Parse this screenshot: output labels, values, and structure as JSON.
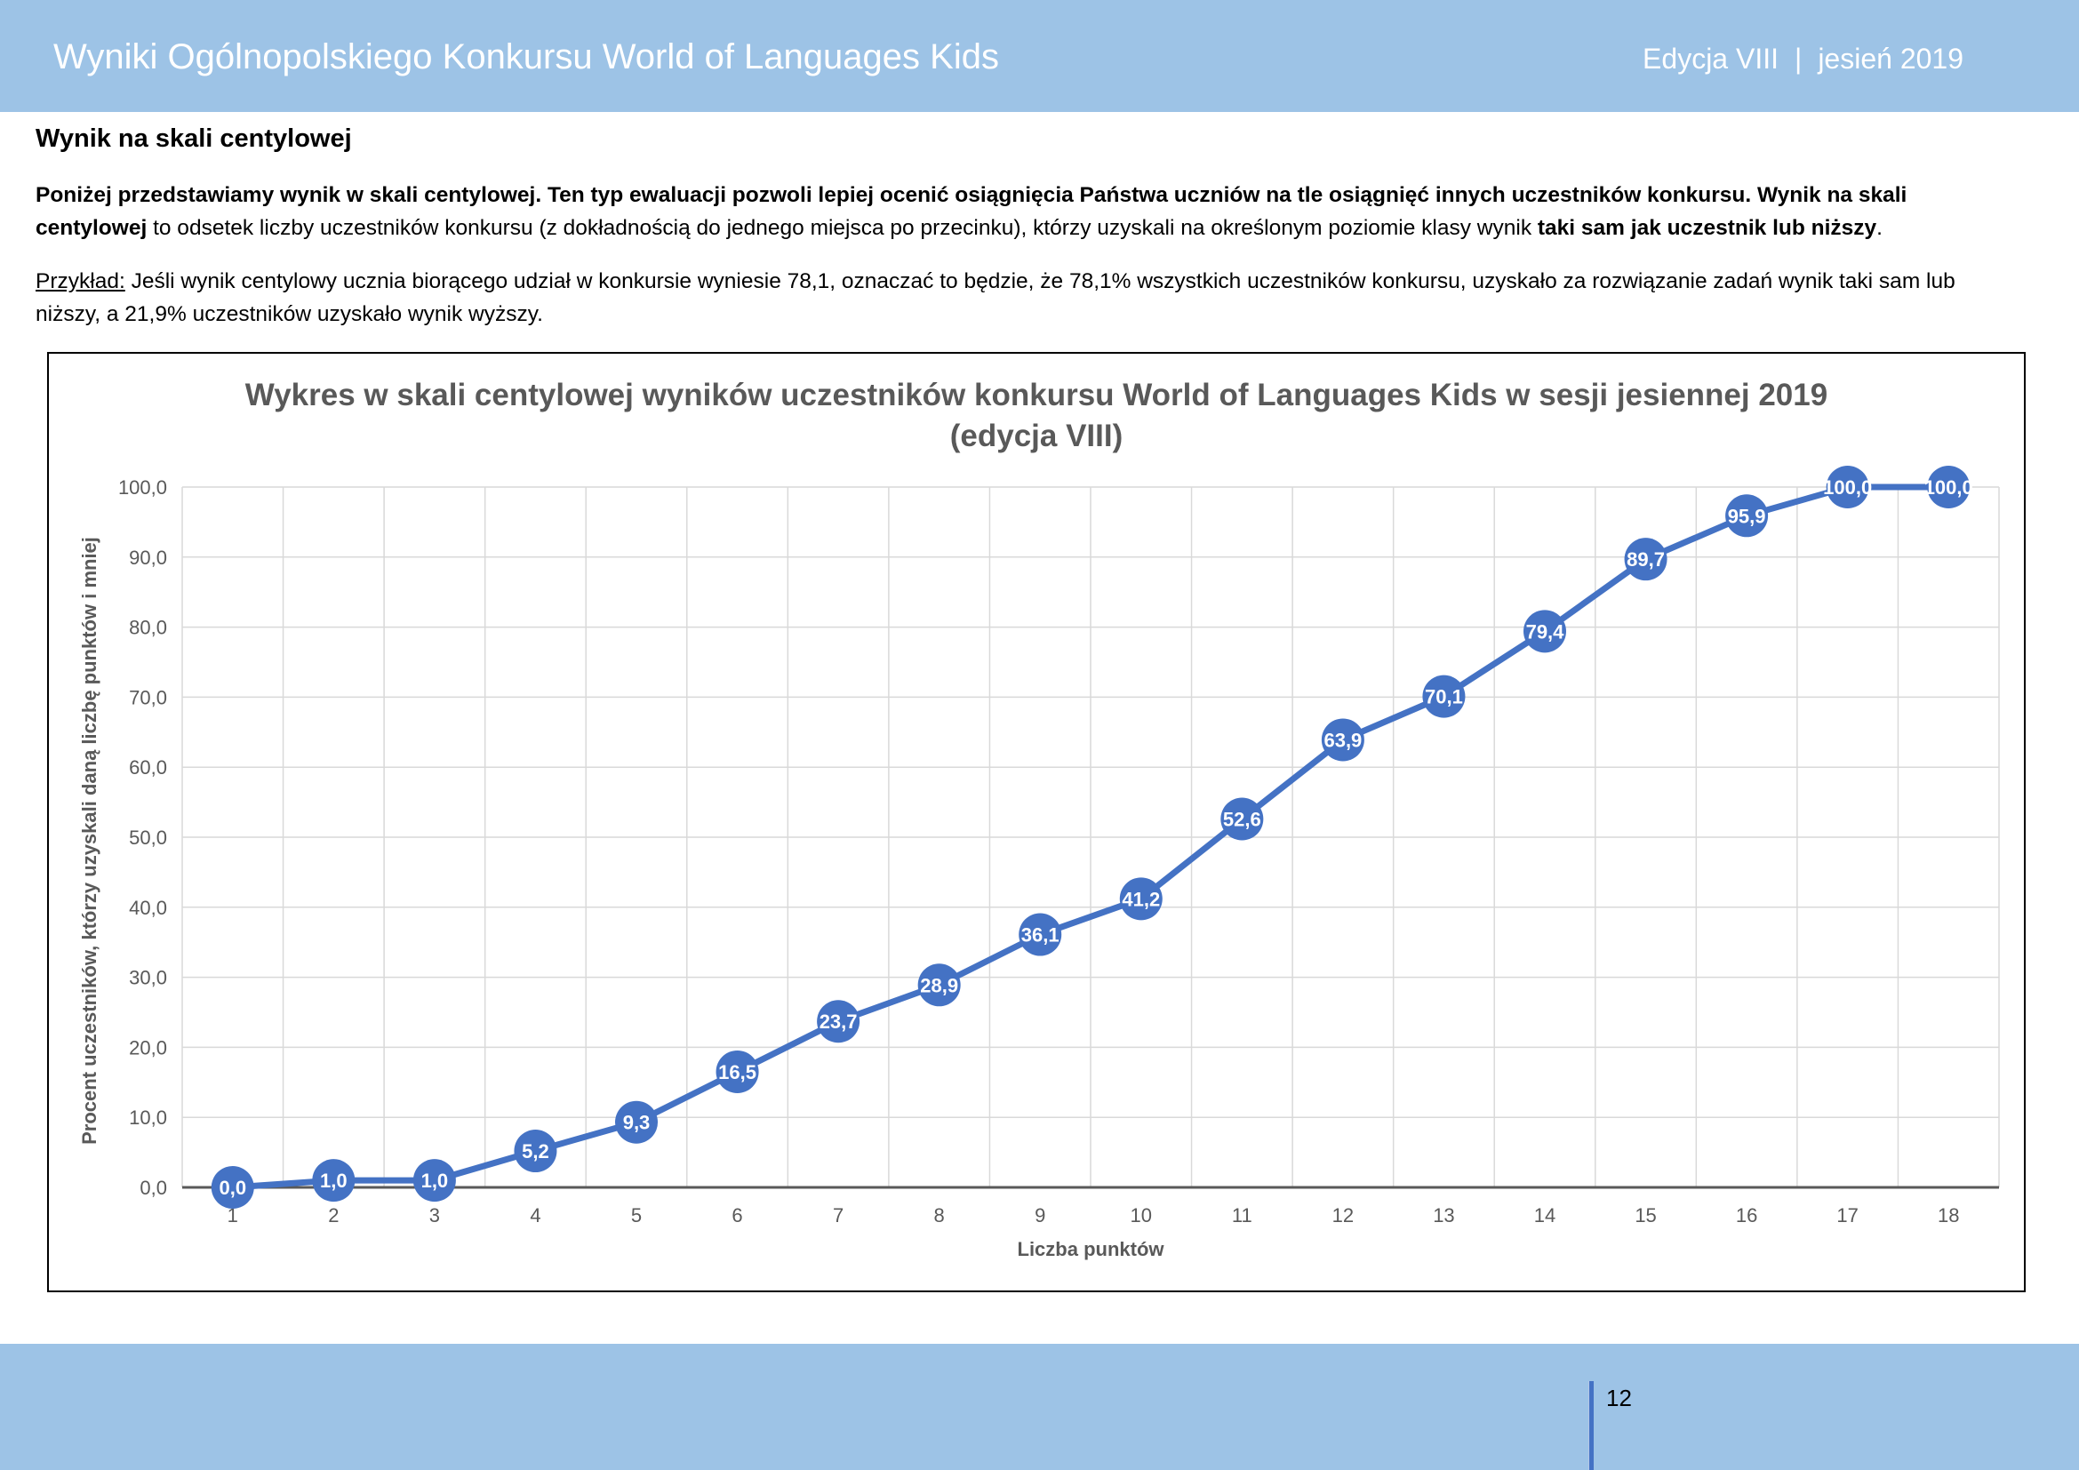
{
  "header": {
    "title": "Wyniki Ogólnopolskiego Konkursu World of Languages Kids",
    "edition": "Edycja VIII",
    "separator": "|",
    "season": "jesień 2019"
  },
  "section": {
    "heading": "Wynik na skali centylowej"
  },
  "paragraph1": {
    "bold_part": "Poniżej przedstawiamy wynik w skali centylowej. Ten typ ewaluacji pozwoli lepiej ocenić osiągnięcia Państwa uczniów na tle osiągnięć innych uczestników konkursu. Wynik na skali centylowej",
    "normal_part": " to odsetek liczby uczestników konkursu (z dokładnością do jednego miejsca po przecinku), którzy uzyskali na określonym poziomie klasy wynik ",
    "bold_end": "taki sam jak uczestnik lub niższy",
    "period": "."
  },
  "paragraph2": {
    "label": "Przykład:",
    "text": " Jeśli wynik centylowy ucznia biorącego udział w konkursie wyniesie 78,1, oznaczać to będzie, że 78,1% wszystkich uczestników konkursu, uzyskało za rozwiązanie zadań wynik taki sam lub niższy, a 21,9% uczestników uzyskało wynik wyższy."
  },
  "chart_data": {
    "type": "line",
    "title_line1": "Wykres w skali centylowej wyników uczestników konkursu World of Languages Kids w sesji jesiennej 2019",
    "title_line2": "(edycja VIII)",
    "xlabel": "Liczba punktów",
    "ylabel": "Procent uczestników, którzy uzyskali daną liczbę punktów i mniej",
    "categories": [
      "1",
      "2",
      "3",
      "4",
      "5",
      "6",
      "7",
      "8",
      "9",
      "10",
      "11",
      "12",
      "13",
      "14",
      "15",
      "16",
      "17",
      "18"
    ],
    "values": [
      0.0,
      1.0,
      1.0,
      5.2,
      9.3,
      16.5,
      23.7,
      28.9,
      36.1,
      41.2,
      52.6,
      63.9,
      70.1,
      79.4,
      89.7,
      95.9,
      100.0,
      100.0
    ],
    "data_labels": [
      "0,0",
      "1,0",
      "1,0",
      "5,2",
      "9,3",
      "16,5",
      "23,7",
      "28,9",
      "36,1",
      "41,2",
      "52,6",
      "63,9",
      "70,1",
      "79,4",
      "89,7",
      "95,9",
      "100,0",
      "100,0"
    ],
    "y_ticks": [
      "0,0",
      "10,0",
      "20,0",
      "30,0",
      "40,0",
      "50,0",
      "60,0",
      "70,0",
      "80,0",
      "90,0",
      "100,0"
    ],
    "ylim": [
      0,
      100
    ],
    "grid": true,
    "legend": "none",
    "line_color": "#4472c4",
    "marker_color": "#4472c4",
    "label_color": "#ffffff"
  },
  "footer": {
    "page_number": "12"
  },
  "colors": {
    "band": "#9dc3e6",
    "accent": "#4472c4"
  }
}
